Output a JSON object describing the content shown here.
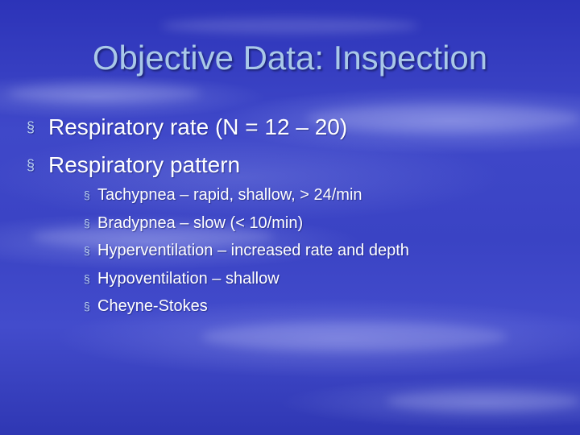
{
  "slide": {
    "title": "Objective Data: Inspection",
    "bullet_glyph": "§",
    "main_points": [
      "Respiratory rate (N = 12 – 20)",
      "Respiratory pattern"
    ],
    "sub_points": [
      "Tachypnea – rapid, shallow, > 24/min",
      "Bradypnea – slow (< 10/min)",
      "Hyperventilation – increased rate and depth",
      "Hypoventilation – shallow",
      "Cheyne-Stokes"
    ]
  }
}
